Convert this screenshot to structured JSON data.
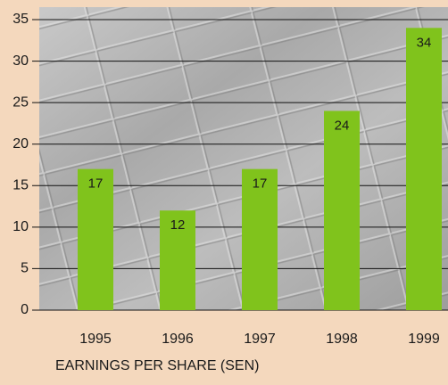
{
  "chart_data": {
    "type": "bar",
    "x_axis_label": "EARNINGS PER SHARE (SEN)",
    "categories": [
      "1995",
      "1996",
      "1997",
      "1998",
      "1999"
    ],
    "values": [
      17,
      12,
      17,
      24,
      34
    ],
    "color": "#80c31c",
    "ylim": [
      0,
      35
    ],
    "yticks": [
      0,
      5,
      10,
      15,
      20,
      25,
      30,
      35
    ],
    "grid": true
  }
}
